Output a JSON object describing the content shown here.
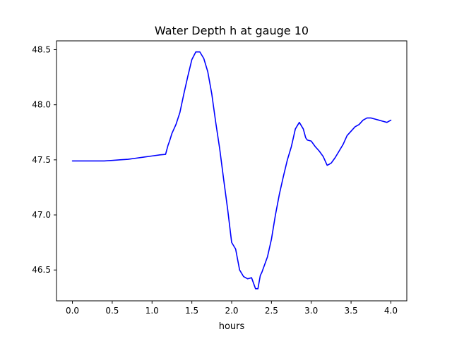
{
  "chart_data": {
    "type": "line",
    "title": "Water Depth h at gauge 10",
    "xlabel": "hours",
    "ylabel": "",
    "xlim": [
      -0.2,
      4.2
    ],
    "ylim": [
      46.22,
      48.58
    ],
    "xticks": [
      0.0,
      0.5,
      1.0,
      1.5,
      2.0,
      2.5,
      3.0,
      3.5,
      4.0
    ],
    "xtick_labels": [
      "0.0",
      "0.5",
      "1.0",
      "1.5",
      "2.0",
      "2.5",
      "3.0",
      "3.5",
      "4.0"
    ],
    "yticks": [
      46.5,
      47.0,
      47.5,
      48.0,
      48.5
    ],
    "ytick_labels": [
      "46.5",
      "47.0",
      "47.5",
      "48.0",
      "48.5"
    ],
    "grid": false,
    "series": [
      {
        "color": "#0000ff",
        "x": [
          0.0,
          0.1,
          0.2,
          0.3,
          0.4,
          0.5,
          0.6,
          0.7,
          0.8,
          0.9,
          1.0,
          1.1,
          1.17,
          1.2,
          1.22,
          1.25,
          1.3,
          1.35,
          1.4,
          1.45,
          1.5,
          1.55,
          1.6,
          1.65,
          1.7,
          1.75,
          1.8,
          1.85,
          1.9,
          1.95,
          2.0,
          2.05,
          2.1,
          2.15,
          2.2,
          2.25,
          2.3,
          2.33,
          2.36,
          2.38,
          2.4,
          2.45,
          2.5,
          2.55,
          2.6,
          2.65,
          2.7,
          2.75,
          2.8,
          2.85,
          2.9,
          2.93,
          2.95,
          3.0,
          3.05,
          3.1,
          3.15,
          3.2,
          3.25,
          3.28,
          3.3,
          3.35,
          3.4,
          3.45,
          3.5,
          3.55,
          3.6,
          3.65,
          3.7,
          3.75,
          3.8,
          3.85,
          3.9,
          3.95,
          4.0
        ],
        "y": [
          47.49,
          47.49,
          47.49,
          47.49,
          47.49,
          47.495,
          47.5,
          47.505,
          47.515,
          47.525,
          47.535,
          47.545,
          47.55,
          47.63,
          47.67,
          47.74,
          47.82,
          47.93,
          48.1,
          48.26,
          48.41,
          48.48,
          48.48,
          48.42,
          48.3,
          48.1,
          47.84,
          47.6,
          47.32,
          47.05,
          46.75,
          46.69,
          46.5,
          46.44,
          46.42,
          46.43,
          46.33,
          46.33,
          46.45,
          46.48,
          46.52,
          46.62,
          46.78,
          47.0,
          47.19,
          47.35,
          47.5,
          47.62,
          47.78,
          47.84,
          47.78,
          47.7,
          47.68,
          47.67,
          47.62,
          47.58,
          47.53,
          47.45,
          47.47,
          47.5,
          47.52,
          47.58,
          47.64,
          47.72,
          47.76,
          47.8,
          47.82,
          47.86,
          47.88,
          47.88,
          47.87,
          47.86,
          47.85,
          47.84,
          47.86
        ]
      }
    ]
  }
}
